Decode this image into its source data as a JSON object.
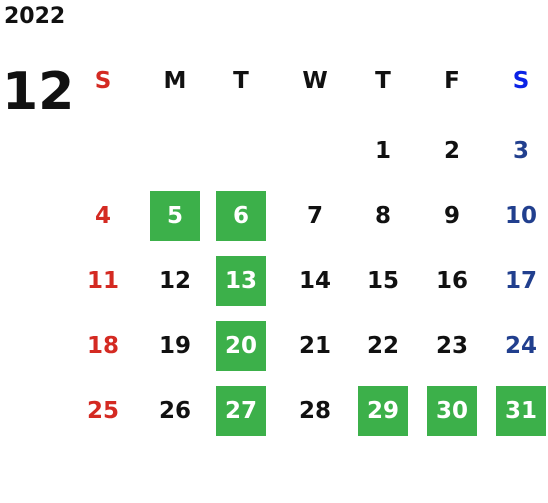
{
  "header": {
    "year": "2022",
    "month": "12"
  },
  "weekdays": [
    "S",
    "M",
    "T",
    "W",
    "T",
    "F",
    "S"
  ],
  "weeks": [
    [
      null,
      null,
      null,
      null,
      {
        "day": 1
      },
      {
        "day": 2
      },
      {
        "day": 3
      }
    ],
    [
      {
        "day": 4
      },
      {
        "day": 5,
        "highlight": true
      },
      {
        "day": 6,
        "highlight": true
      },
      {
        "day": 7
      },
      {
        "day": 8
      },
      {
        "day": 9
      },
      {
        "day": 10
      }
    ],
    [
      {
        "day": 11
      },
      {
        "day": 12
      },
      {
        "day": 13,
        "highlight": true
      },
      {
        "day": 14
      },
      {
        "day": 15
      },
      {
        "day": 16
      },
      {
        "day": 17
      }
    ],
    [
      {
        "day": 18
      },
      {
        "day": 19
      },
      {
        "day": 20,
        "highlight": true
      },
      {
        "day": 21
      },
      {
        "day": 22
      },
      {
        "day": 23
      },
      {
        "day": 24
      }
    ],
    [
      {
        "day": 25
      },
      {
        "day": 26
      },
      {
        "day": 27,
        "highlight": true
      },
      {
        "day": 28
      },
      {
        "day": 29,
        "highlight": true
      },
      {
        "day": 30,
        "highlight": true
      },
      {
        "day": 31,
        "highlight": true
      }
    ]
  ]
}
